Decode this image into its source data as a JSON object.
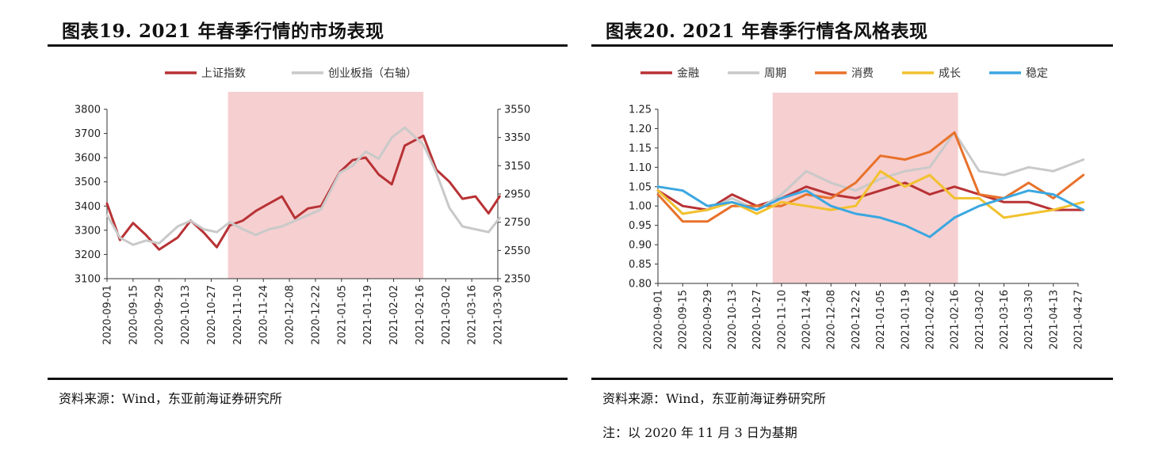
{
  "left": {
    "title": "图表19. 2021 年春季行情的市场表现",
    "source": "资料来源：Wind，东亚前海证券研究所"
  },
  "right": {
    "title": "图表20. 2021 年春季行情各风格表现",
    "source": "资料来源：Wind，东亚前海证券研究所",
    "note": "注：以 2020 年 11 月 3 日为基期"
  },
  "chart_data": [
    {
      "type": "line",
      "title": "",
      "x_tick_labels": [
        "2020-09-01",
        "2020-09-15",
        "2020-09-29",
        "2020-10-13",
        "2020-10-27",
        "2020-11-10",
        "2020-11-24",
        "2020-12-08",
        "2020-12-22",
        "2021-01-05",
        "2021-01-19",
        "2021-02-02",
        "2021-02-16",
        "2021-03-02",
        "2021-03-16",
        "2021-03-30"
      ],
      "ylim_left": [
        3100,
        3800
      ],
      "yticks_left": [
        "3100",
        "3200",
        "3300",
        "3400",
        "3500",
        "3600",
        "3700",
        "3800"
      ],
      "ylim_right": [
        2350,
        3550
      ],
      "yticks_right": [
        "2350",
        "2550",
        "2750",
        "2950",
        "3150",
        "3350",
        "3550"
      ],
      "shaded_period": [
        "2020-11-05",
        "2021-02-18"
      ],
      "legend_position": "top-center",
      "series": [
        {
          "name": "上证指数",
          "axis": "left",
          "color": "#b83235",
          "x": [
            "2020-09-01",
            "2020-09-08",
            "2020-09-15",
            "2020-09-22",
            "2020-09-29",
            "2020-10-09",
            "2020-10-16",
            "2020-10-23",
            "2020-10-30",
            "2020-11-06",
            "2020-11-13",
            "2020-11-20",
            "2020-11-27",
            "2020-12-04",
            "2020-12-11",
            "2020-12-18",
            "2020-12-25",
            "2021-01-04",
            "2021-01-11",
            "2021-01-18",
            "2021-01-25",
            "2021-02-01",
            "2021-02-08",
            "2021-02-18",
            "2021-02-25",
            "2021-03-04",
            "2021-03-11",
            "2021-03-18",
            "2021-03-25",
            "2021-03-31"
          ],
          "values": [
            3410,
            3260,
            3330,
            3280,
            3220,
            3270,
            3340,
            3290,
            3230,
            3320,
            3340,
            3380,
            3410,
            3440,
            3350,
            3390,
            3400,
            3540,
            3590,
            3600,
            3530,
            3490,
            3650,
            3690,
            3550,
            3500,
            3430,
            3440,
            3370,
            3440
          ]
        },
        {
          "name": "创业板指（右轴）",
          "axis": "right",
          "color": "#c9c9c9",
          "x": [
            "2020-09-01",
            "2020-09-08",
            "2020-09-15",
            "2020-09-22",
            "2020-09-29",
            "2020-10-09",
            "2020-10-16",
            "2020-10-23",
            "2020-10-30",
            "2020-11-06",
            "2020-11-13",
            "2020-11-20",
            "2020-11-27",
            "2020-12-04",
            "2020-12-11",
            "2020-12-18",
            "2020-12-25",
            "2021-01-04",
            "2021-01-11",
            "2021-01-18",
            "2021-01-25",
            "2021-02-01",
            "2021-02-08",
            "2021-02-18",
            "2021-02-25",
            "2021-03-04",
            "2021-03-11",
            "2021-03-18",
            "2021-03-25",
            "2021-03-31"
          ],
          "values": [
            2800,
            2640,
            2590,
            2620,
            2600,
            2720,
            2760,
            2700,
            2680,
            2750,
            2700,
            2660,
            2700,
            2720,
            2760,
            2800,
            2840,
            3100,
            3150,
            3250,
            3200,
            3350,
            3420,
            3300,
            3100,
            2850,
            2720,
            2700,
            2680,
            2780
          ]
        }
      ]
    },
    {
      "type": "line",
      "title": "",
      "x_tick_labels": [
        "2020-09-01",
        "2020-09-15",
        "2020-09-29",
        "2020-10-13",
        "2020-10-27",
        "2020-11-10",
        "2020-11-24",
        "2020-12-08",
        "2020-12-22",
        "2021-01-05",
        "2021-01-19",
        "2021-02-02",
        "2021-02-16",
        "2021-03-02",
        "2021-03-16",
        "2021-03-30",
        "2021-04-13",
        "2021-04-27"
      ],
      "ylim": [
        0.8,
        1.25
      ],
      "yticks": [
        "0.80",
        "0.85",
        "0.90",
        "0.95",
        "1.00",
        "1.05",
        "1.10",
        "1.15",
        "1.20",
        "1.25"
      ],
      "shaded_period": [
        "2020-11-05",
        "2021-02-18"
      ],
      "legend_position": "top-center",
      "series": [
        {
          "name": "金融",
          "color": "#b83235",
          "x": [
            "2020-09-01",
            "2020-09-15",
            "2020-09-29",
            "2020-10-13",
            "2020-10-27",
            "2020-11-10",
            "2020-11-24",
            "2020-12-08",
            "2020-12-22",
            "2021-01-05",
            "2021-01-19",
            "2021-02-02",
            "2021-02-16",
            "2021-03-02",
            "2021-03-16",
            "2021-03-30",
            "2021-04-13",
            "2021-04-30"
          ],
          "values": [
            1.04,
            1.0,
            0.99,
            1.03,
            1.0,
            1.02,
            1.05,
            1.03,
            1.02,
            1.04,
            1.06,
            1.03,
            1.05,
            1.03,
            1.01,
            1.01,
            0.99,
            0.99
          ]
        },
        {
          "name": "周期",
          "color": "#c9c9c9",
          "x": [
            "2020-09-01",
            "2020-09-15",
            "2020-09-29",
            "2020-10-13",
            "2020-10-27",
            "2020-11-10",
            "2020-11-24",
            "2020-12-08",
            "2020-12-22",
            "2021-01-05",
            "2021-01-19",
            "2021-02-02",
            "2021-02-16",
            "2021-03-02",
            "2021-03-16",
            "2021-03-30",
            "2021-04-13",
            "2021-04-30"
          ],
          "values": [
            1.04,
            0.98,
            0.99,
            1.02,
            0.99,
            1.03,
            1.09,
            1.06,
            1.04,
            1.07,
            1.09,
            1.1,
            1.19,
            1.09,
            1.08,
            1.1,
            1.09,
            1.12
          ]
        },
        {
          "name": "消费",
          "color": "#e8712a",
          "x": [
            "2020-09-01",
            "2020-09-15",
            "2020-09-29",
            "2020-10-13",
            "2020-10-27",
            "2020-11-10",
            "2020-11-24",
            "2020-12-08",
            "2020-12-22",
            "2021-01-05",
            "2021-01-19",
            "2021-02-02",
            "2021-02-16",
            "2021-03-02",
            "2021-03-16",
            "2021-03-30",
            "2021-04-13",
            "2021-04-30"
          ],
          "values": [
            1.03,
            0.96,
            0.96,
            1.0,
            1.0,
            1.0,
            1.03,
            1.02,
            1.06,
            1.13,
            1.12,
            1.14,
            1.19,
            1.03,
            1.02,
            1.06,
            1.02,
            1.08
          ]
        },
        {
          "name": "成长",
          "color": "#f2c12e",
          "x": [
            "2020-09-01",
            "2020-09-15",
            "2020-09-29",
            "2020-10-13",
            "2020-10-27",
            "2020-11-10",
            "2020-11-24",
            "2020-12-08",
            "2020-12-22",
            "2021-01-05",
            "2021-01-19",
            "2021-02-02",
            "2021-02-16",
            "2021-03-02",
            "2021-03-16",
            "2021-03-30",
            "2021-04-13",
            "2021-04-30"
          ],
          "values": [
            1.04,
            0.98,
            0.99,
            1.01,
            0.98,
            1.01,
            1.0,
            0.99,
            1.0,
            1.09,
            1.05,
            1.08,
            1.02,
            1.02,
            0.97,
            0.98,
            0.99,
            1.01
          ]
        },
        {
          "name": "稳定",
          "color": "#3aa7e0",
          "x": [
            "2020-09-01",
            "2020-09-15",
            "2020-09-29",
            "2020-10-13",
            "2020-10-27",
            "2020-11-10",
            "2020-11-24",
            "2020-12-08",
            "2020-12-22",
            "2021-01-05",
            "2021-01-19",
            "2021-02-02",
            "2021-02-16",
            "2021-03-02",
            "2021-03-16",
            "2021-03-30",
            "2021-04-13",
            "2021-04-30"
          ],
          "values": [
            1.05,
            1.04,
            1.0,
            1.01,
            0.99,
            1.02,
            1.04,
            1.0,
            0.98,
            0.97,
            0.95,
            0.92,
            0.97,
            1.0,
            1.02,
            1.04,
            1.03,
            0.99
          ]
        }
      ]
    }
  ]
}
